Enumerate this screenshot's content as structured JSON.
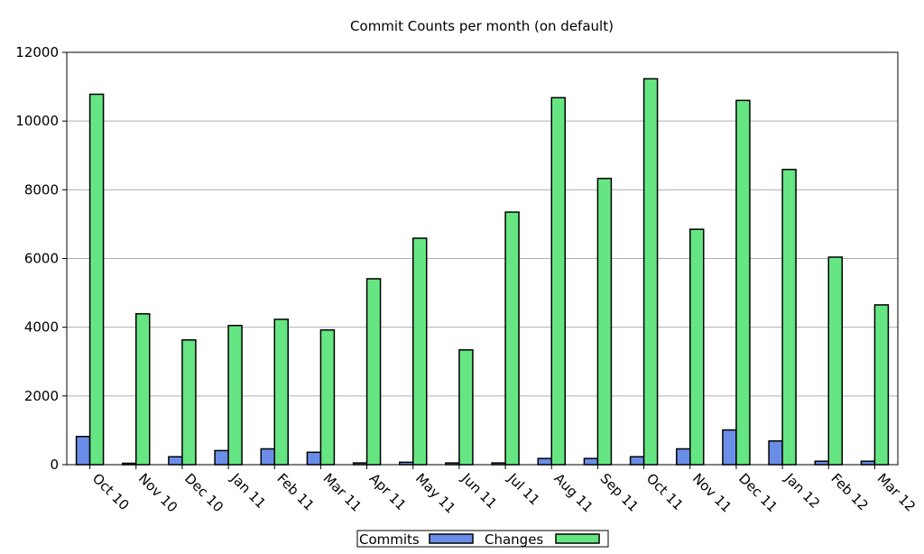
{
  "chart_data": {
    "type": "bar",
    "title": "Commit Counts per month (on default)",
    "xlabel": "",
    "ylabel": "",
    "ylim": [
      0,
      12000
    ],
    "yticks": [
      "0",
      "2000",
      "4000",
      "6000",
      "8000",
      "10000",
      "12000"
    ],
    "grid": true,
    "legend_position": "bottom-center",
    "categories": [
      "Oct 10",
      "Nov 10",
      "Dec 10",
      "Jan 11",
      "Feb 11",
      "Mar 11",
      "Apr 11",
      "May 11",
      "Jun 11",
      "Jul 11",
      "Aug 11",
      "Sep 11",
      "Oct 11",
      "Nov 11",
      "Dec 11",
      "Jan 12",
      "Feb 12",
      "Mar 12"
    ],
    "series": [
      {
        "name": "Commits",
        "color": "#6a8ee8",
        "values": [
          820,
          40,
          230,
          410,
          460,
          360,
          50,
          70,
          50,
          50,
          180,
          180,
          230,
          460,
          1010,
          690,
          100,
          100
        ]
      },
      {
        "name": "Changes",
        "color": "#66e683",
        "values": [
          10780,
          4390,
          3630,
          4050,
          4230,
          3920,
          5410,
          6590,
          3340,
          7350,
          10680,
          8330,
          11230,
          6850,
          10600,
          8590,
          6040,
          4650
        ]
      }
    ]
  }
}
